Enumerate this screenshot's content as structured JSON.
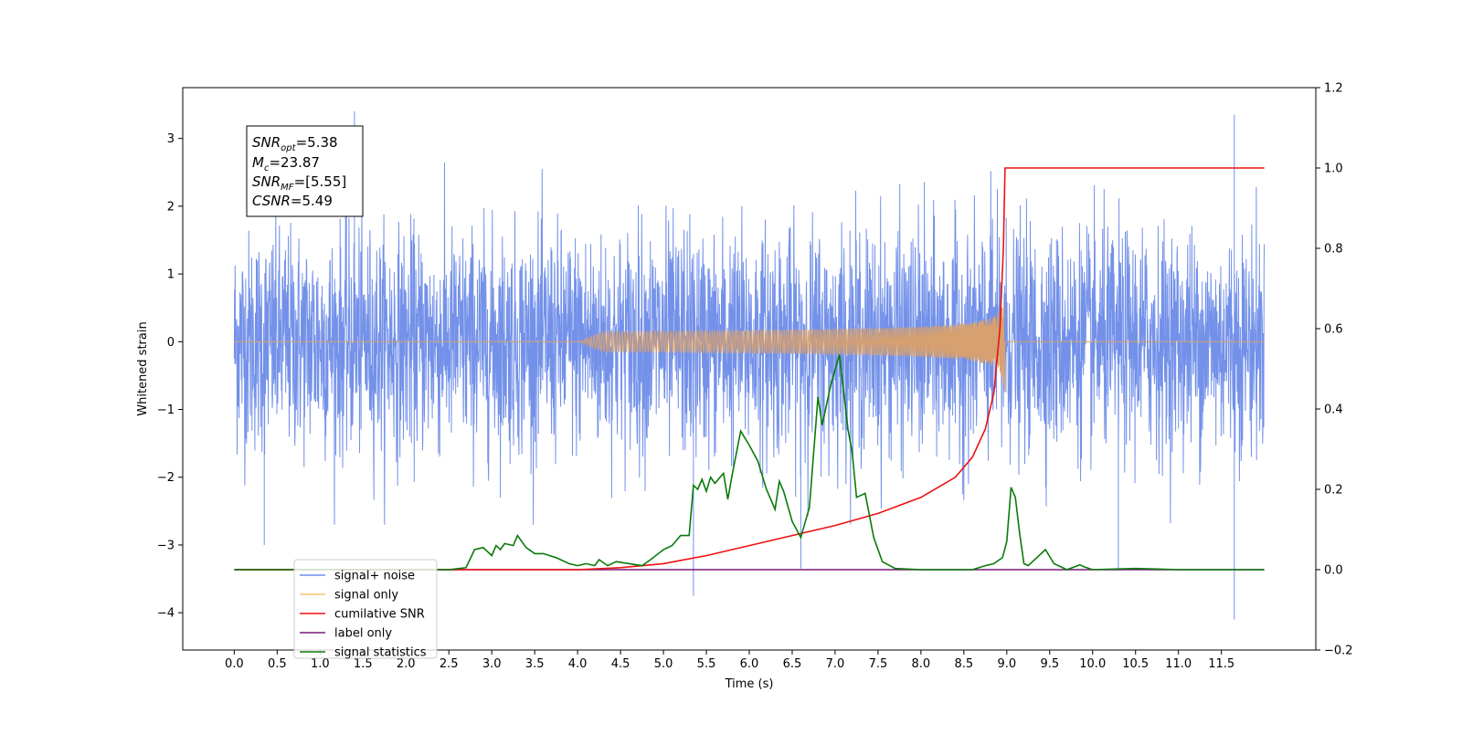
{
  "chart_data": {
    "type": "line",
    "title": "",
    "xlabel": "Time (s)",
    "ylabel": "Whitened strain",
    "xlim": [
      -0.6,
      12.6
    ],
    "ylim": [
      -4.55,
      3.75
    ],
    "y2lim": [
      -0.2,
      1.2
    ],
    "grid": false,
    "legend_position": "lower-left",
    "x_ticks": [
      "0.0",
      "0.5",
      "1.0",
      "1.5",
      "2.0",
      "2.5",
      "3.0",
      "3.5",
      "4.0",
      "4.5",
      "5.0",
      "5.5",
      "6.0",
      "6.5",
      "7.0",
      "7.5",
      "8.0",
      "8.5",
      "9.0",
      "9.5",
      "10.0",
      "10.5",
      "11.0",
      "11.5"
    ],
    "y_ticks": [
      "3",
      "2",
      "1",
      "0",
      "−1",
      "−2",
      "−3",
      "−4"
    ],
    "y2_ticks": [
      "1.2",
      "1.0",
      "0.8",
      "0.6",
      "0.4",
      "0.2",
      "0.0",
      "−0.2"
    ],
    "annotation": {
      "snr_opt": {
        "name": "SNR",
        "sub": "opt",
        "value": "=5.38"
      },
      "mc": {
        "name": "M",
        "sub": "c",
        "value": "=23.87"
      },
      "snr_mf": {
        "name": "SNR",
        "sub": "MF",
        "value": "=[5.55]"
      },
      "csnr": {
        "name": "CSNR",
        "sub": "",
        "value": "=5.49"
      }
    },
    "series": [
      {
        "name": "signal+ noise",
        "color": "#6b8be8",
        "axis": "left",
        "x_range": [
          0,
          12
        ],
        "noise_sigma": 0.85,
        "spikes": [
          {
            "x": 1.4,
            "y": 3.4
          },
          {
            "x": 0.35,
            "y": -3.0
          },
          {
            "x": 5.35,
            "y": -3.75
          },
          {
            "x": 11.65,
            "y": 3.35
          },
          {
            "x": 11.65,
            "y": -4.1
          },
          {
            "x": 6.6,
            "y": -3.35
          },
          {
            "x": 10.3,
            "y": -3.35
          }
        ]
      },
      {
        "name": "signal only",
        "color": "#f5a742",
        "axis": "left",
        "x_range": [
          0,
          12
        ],
        "chirp_start": 4.0,
        "merger": 8.98,
        "peak_amplitude": 0.9
      },
      {
        "name": "cumilative SNR",
        "color": "#ee1111",
        "axis": "right",
        "points": [
          [
            0,
            0
          ],
          [
            4.0,
            0
          ],
          [
            4.5,
            0.005
          ],
          [
            5.0,
            0.015
          ],
          [
            5.5,
            0.035
          ],
          [
            6.0,
            0.06
          ],
          [
            6.5,
            0.085
          ],
          [
            7.0,
            0.11
          ],
          [
            7.5,
            0.14
          ],
          [
            8.0,
            0.18
          ],
          [
            8.4,
            0.23
          ],
          [
            8.6,
            0.28
          ],
          [
            8.75,
            0.35
          ],
          [
            8.85,
            0.44
          ],
          [
            8.92,
            0.6
          ],
          [
            8.96,
            0.8
          ],
          [
            8.98,
            1.0
          ],
          [
            12,
            1.0
          ]
        ]
      },
      {
        "name": "label only",
        "color": "#7a1a7a",
        "axis": "right",
        "points": [
          [
            0,
            0
          ],
          [
            12,
            0
          ]
        ]
      },
      {
        "name": "signal statistics",
        "color": "#0a7a0a",
        "axis": "right",
        "points": [
          [
            0,
            0
          ],
          [
            2.5,
            0
          ],
          [
            2.7,
            0.005
          ],
          [
            2.8,
            0.05
          ],
          [
            2.9,
            0.055
          ],
          [
            3.0,
            0.035
          ],
          [
            3.05,
            0.06
          ],
          [
            3.1,
            0.05
          ],
          [
            3.15,
            0.065
          ],
          [
            3.25,
            0.06
          ],
          [
            3.3,
            0.085
          ],
          [
            3.4,
            0.055
          ],
          [
            3.5,
            0.04
          ],
          [
            3.6,
            0.04
          ],
          [
            3.75,
            0.03
          ],
          [
            3.9,
            0.015
          ],
          [
            4.0,
            0.01
          ],
          [
            4.1,
            0.015
          ],
          [
            4.2,
            0.01
          ],
          [
            4.25,
            0.025
          ],
          [
            4.35,
            0.01
          ],
          [
            4.45,
            0.02
          ],
          [
            4.6,
            0.015
          ],
          [
            4.75,
            0.01
          ],
          [
            4.85,
            0.025
          ],
          [
            5.0,
            0.05
          ],
          [
            5.1,
            0.06
          ],
          [
            5.2,
            0.085
          ],
          [
            5.3,
            0.085
          ],
          [
            5.35,
            0.21
          ],
          [
            5.4,
            0.2
          ],
          [
            5.45,
            0.225
          ],
          [
            5.5,
            0.195
          ],
          [
            5.55,
            0.23
          ],
          [
            5.6,
            0.215
          ],
          [
            5.7,
            0.24
          ],
          [
            5.75,
            0.175
          ],
          [
            5.8,
            0.235
          ],
          [
            5.9,
            0.345
          ],
          [
            6.0,
            0.31
          ],
          [
            6.1,
            0.27
          ],
          [
            6.2,
            0.2
          ],
          [
            6.3,
            0.15
          ],
          [
            6.35,
            0.22
          ],
          [
            6.4,
            0.195
          ],
          [
            6.5,
            0.12
          ],
          [
            6.6,
            0.08
          ],
          [
            6.7,
            0.155
          ],
          [
            6.8,
            0.43
          ],
          [
            6.85,
            0.36
          ],
          [
            6.95,
            0.46
          ],
          [
            7.05,
            0.535
          ],
          [
            7.15,
            0.35
          ],
          [
            7.2,
            0.29
          ],
          [
            7.25,
            0.18
          ],
          [
            7.35,
            0.19
          ],
          [
            7.45,
            0.08
          ],
          [
            7.55,
            0.02
          ],
          [
            7.7,
            0.003
          ],
          [
            8.0,
            0.0
          ],
          [
            8.6,
            0.0
          ],
          [
            8.75,
            0.01
          ],
          [
            8.85,
            0.015
          ],
          [
            8.95,
            0.03
          ],
          [
            9.0,
            0.07
          ],
          [
            9.05,
            0.205
          ],
          [
            9.1,
            0.18
          ],
          [
            9.15,
            0.09
          ],
          [
            9.2,
            0.015
          ],
          [
            9.25,
            0.01
          ],
          [
            9.35,
            0.03
          ],
          [
            9.45,
            0.05
          ],
          [
            9.55,
            0.015
          ],
          [
            9.7,
            0.0
          ],
          [
            9.85,
            0.012
          ],
          [
            9.9,
            0.007
          ],
          [
            10.0,
            0.0
          ],
          [
            10.5,
            0.003
          ],
          [
            11.0,
            0.0
          ],
          [
            12,
            0.0
          ]
        ]
      }
    ]
  }
}
